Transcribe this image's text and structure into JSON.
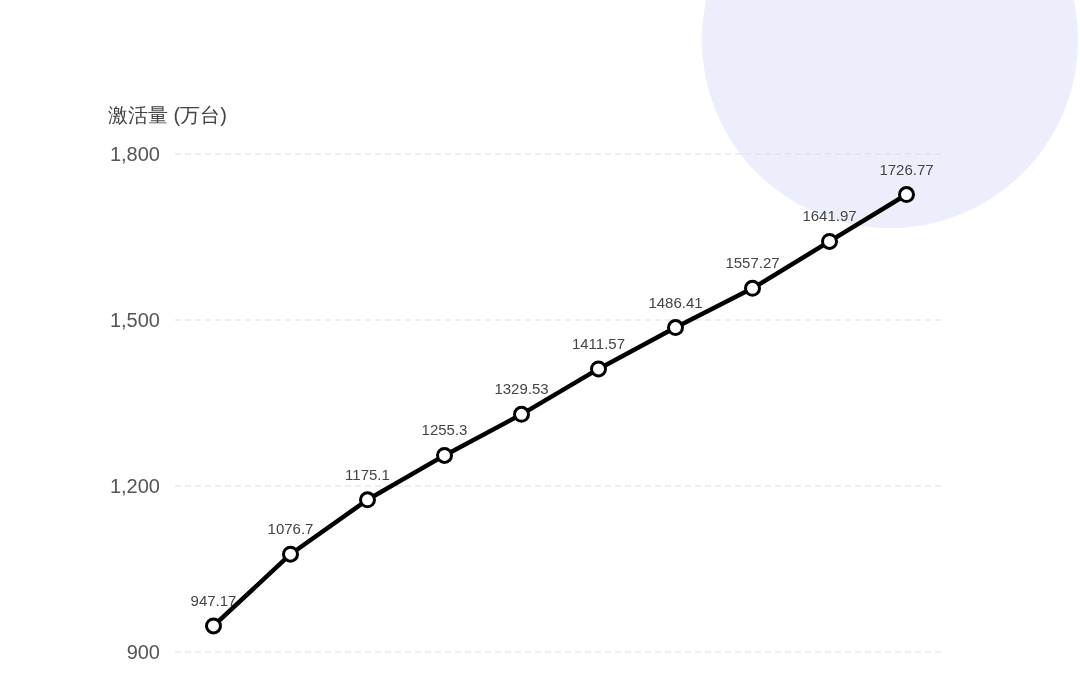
{
  "chart_data": {
    "type": "line",
    "ylabel": "激活量 (万台)",
    "categories": [
      null,
      null,
      null,
      null,
      null,
      null,
      null,
      null,
      null,
      null
    ],
    "series": [
      {
        "color": "#000000",
        "values": [
          947.17,
          1076.7,
          1175.1,
          1255.3,
          1329.53,
          1411.57,
          1486.41,
          1557.27,
          1641.97,
          1726.77
        ]
      }
    ],
    "ylim": [
      900,
      1800
    ],
    "yticks": [
      {
        "value": 900,
        "label": "900"
      },
      {
        "value": 1200,
        "label": "1,200"
      },
      {
        "value": 1500,
        "label": "1,500"
      },
      {
        "value": 1800,
        "label": "1,800"
      }
    ],
    "grid": "y",
    "marker": "circle",
    "line_style": "solid",
    "data_labels": true
  }
}
